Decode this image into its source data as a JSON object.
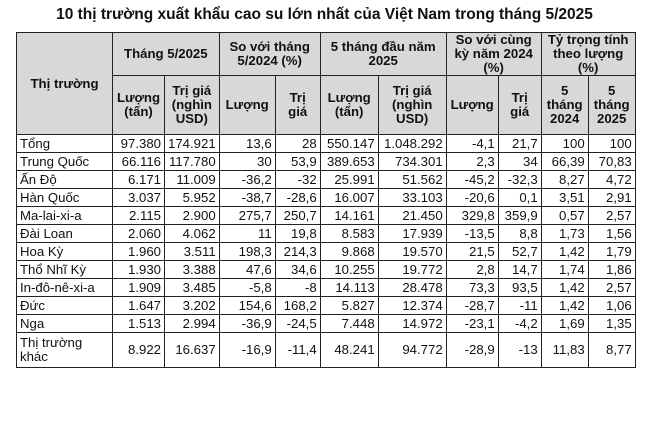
{
  "title": "10 thị trường xuất khẩu cao su lớn nhất của Việt Nam trong tháng 5/2025",
  "headers": {
    "market": "Thị trường",
    "thang5": "Tháng 5/2025",
    "sovoi_thang": "So với tháng 5/2024 (%)",
    "nam5thang": "5 tháng đầu năm 2025",
    "sovoi_cungky": "So với cùng kỳ năm 2024 (%)",
    "tytrong": "Tỷ trọng tính theo lượng (%)",
    "luong_tan": "Lượng (tấn)",
    "trigia_usd": "Trị giá (nghìn USD)",
    "luong": "Lượng",
    "trigia": "Trị giá",
    "t5_2024": "5 tháng 2024",
    "t5_2025": "5 tháng 2025"
  },
  "rows": [
    [
      "Tổng",
      "97.380",
      "174.921",
      "13,6",
      "28",
      "550.147",
      "1.048.292",
      "-4,1",
      "21,7",
      "100",
      "100"
    ],
    [
      "Trung Quốc",
      "66.116",
      "117.780",
      "30",
      "53,9",
      "389.653",
      "734.301",
      "2,3",
      "34",
      "66,39",
      "70,83"
    ],
    [
      "Ấn Độ",
      "6.171",
      "11.009",
      "-36,2",
      "-32",
      "25.991",
      "51.562",
      "-45,2",
      "-32,3",
      "8,27",
      "4,72"
    ],
    [
      "Hàn Quốc",
      "3.037",
      "5.952",
      "-38,7",
      "-28,6",
      "16.007",
      "33.103",
      "-20,6",
      "0,1",
      "3,51",
      "2,91"
    ],
    [
      "Ma-lai-xi-a",
      "2.115",
      "2.900",
      "275,7",
      "250,7",
      "14.161",
      "21.450",
      "329,8",
      "359,9",
      "0,57",
      "2,57"
    ],
    [
      "Đài Loan",
      "2.060",
      "4.062",
      "11",
      "19,8",
      "8.583",
      "17.939",
      "-13,5",
      "8,8",
      "1,73",
      "1,56"
    ],
    [
      "Hoa Kỳ",
      "1.960",
      "3.511",
      "198,3",
      "214,3",
      "9.868",
      "19.570",
      "21,5",
      "52,7",
      "1,42",
      "1,79"
    ],
    [
      "Thổ Nhĩ Kỳ",
      "1.930",
      "3.388",
      "47,6",
      "34,6",
      "10.255",
      "19.772",
      "2,8",
      "14,7",
      "1,74",
      "1,86"
    ],
    [
      "In-đô-nê-xi-a",
      "1.909",
      "3.485",
      "-5,8",
      "-8",
      "14.113",
      "28.478",
      "73,3",
      "93,5",
      "1,42",
      "2,57"
    ],
    [
      "Đức",
      "1.647",
      "3.202",
      "154,6",
      "168,2",
      "5.827",
      "12.374",
      "-28,7",
      "-11",
      "1,42",
      "1,06"
    ],
    [
      "Nga",
      "1.513",
      "2.994",
      "-36,9",
      "-24,5",
      "7.448",
      "14.972",
      "-23,1",
      "-4,2",
      "1,69",
      "1,35"
    ],
    [
      "Thị trường khác",
      "8.922",
      "16.637",
      "-16,9",
      "-11,4",
      "48.241",
      "94.772",
      "-28,9",
      "-13",
      "11,83",
      "8,77"
    ]
  ]
}
